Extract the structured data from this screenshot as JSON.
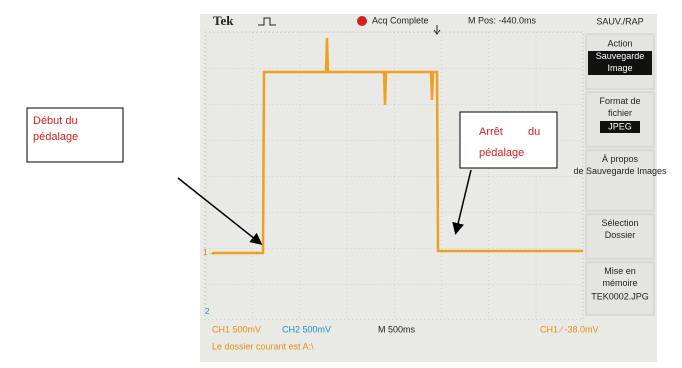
{
  "header": {
    "brand": "Tek",
    "status": "Acq Complete",
    "position": "M Pos: -440.0ms"
  },
  "menu": {
    "title": "SAUV./RAP",
    "items": [
      {
        "label": "Action",
        "value": "Sauvegarde Image"
      },
      {
        "label": "Format de fichier",
        "value": "JPEG"
      },
      {
        "label": "À propos de Sauvegarde Images"
      },
      {
        "label": "Sélection Dossier"
      },
      {
        "label": "Mise en mémoire",
        "value": "TEK0002.JPG"
      }
    ]
  },
  "footer": {
    "ch1": "CH1 500mV",
    "ch2": "CH2 500mV",
    "timebase": "M 500ms",
    "trigger": "CH1 ∕ -38.0mV",
    "message": "Le dossier courant est A:\\"
  },
  "markers": {
    "ch1": "1→",
    "ch2": "2"
  },
  "annotations": [
    {
      "line1": "Début du",
      "line2": "pédalage"
    },
    {
      "line1": "Arrêt",
      "line1b": "du",
      "line2": "pédalage"
    }
  ]
}
